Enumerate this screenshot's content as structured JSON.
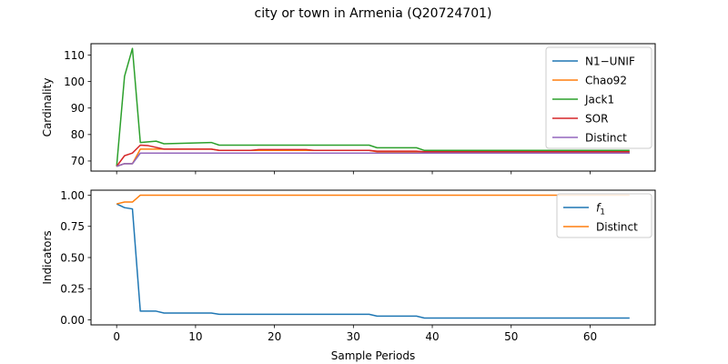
{
  "figure": {
    "title": "city or town in Armenia (Q20724701)"
  },
  "chart_data": [
    {
      "type": "line",
      "ylabel": "Cardinality",
      "xlabel": "",
      "xlim": [
        -3.25,
        68.25
      ],
      "ylim": [
        66.2,
        114.3
      ],
      "yticks": [
        70,
        80,
        90,
        100,
        110
      ],
      "xticks": [
        0,
        10,
        20,
        30,
        40,
        50,
        60
      ],
      "show_x_tick_labels": false,
      "legend_position": "upper right",
      "series": [
        {
          "name": "N1−UNIF",
          "color": "#1f77b4",
          "x": [
            0,
            1,
            2,
            3,
            5,
            6,
            12,
            13,
            32,
            33,
            38,
            39,
            65
          ],
          "y": [
            68,
            69,
            69,
            73,
            73,
            73,
            73,
            73,
            73,
            73,
            73,
            73,
            73
          ]
        },
        {
          "name": "Chao92",
          "color": "#ff7f0e",
          "x": [
            0,
            1,
            2,
            3,
            5,
            6,
            12,
            13,
            32,
            33,
            38,
            39,
            65
          ],
          "y": [
            68,
            69,
            69,
            74.5,
            74.5,
            74.5,
            74.5,
            74,
            74,
            73.5,
            73.5,
            73.5,
            73.5
          ]
        },
        {
          "name": "Jack1",
          "color": "#2ca02c",
          "x": [
            0,
            1,
            2,
            3,
            5,
            6,
            12,
            13,
            32,
            33,
            38,
            39,
            65
          ],
          "y": [
            68,
            102,
            112.5,
            77,
            77.5,
            76.5,
            77,
            76,
            76,
            75,
            75,
            74,
            74
          ]
        },
        {
          "name": "SOR",
          "color": "#d62728",
          "x": [
            0,
            1,
            2,
            3,
            4,
            6,
            12,
            13,
            17,
            18,
            24,
            25,
            32,
            33,
            38,
            39,
            65
          ],
          "y": [
            68,
            72,
            73,
            76,
            75.8,
            74.5,
            74.5,
            74,
            74,
            74.3,
            74.3,
            74,
            74,
            73.7,
            73.7,
            73.5,
            73.5
          ]
        },
        {
          "name": "Distinct",
          "color": "#9467bd",
          "x": [
            0,
            1,
            2,
            3,
            65
          ],
          "y": [
            68,
            69,
            69,
            73,
            73
          ]
        }
      ]
    },
    {
      "type": "line",
      "ylabel": "Indicators",
      "xlabel": "Sample Periods",
      "xlim": [
        -3.25,
        68.25
      ],
      "ylim": [
        -0.04,
        1.04
      ],
      "yticks": [
        0.0,
        0.25,
        0.5,
        0.75,
        1.0
      ],
      "ytick_labels": [
        "0.00",
        "0.25",
        "0.50",
        "0.75",
        "1.00"
      ],
      "xticks": [
        0,
        10,
        20,
        30,
        40,
        50,
        60
      ],
      "show_x_tick_labels": true,
      "legend_position": "upper right",
      "series": [
        {
          "name": "f1",
          "color": "#1f77b4",
          "x": [
            0,
            1,
            2,
            3,
            5,
            6,
            12,
            13,
            32,
            33,
            38,
            39,
            65
          ],
          "y": [
            0.93,
            0.9,
            0.89,
            0.07,
            0.07,
            0.055,
            0.055,
            0.045,
            0.045,
            0.03,
            0.03,
            0.015,
            0.015
          ]
        },
        {
          "name": "Distinct",
          "color": "#ff7f0e",
          "x": [
            0,
            1,
            2,
            3,
            65
          ],
          "y": [
            0.93,
            0.945,
            0.945,
            1.0,
            1.0
          ]
        }
      ]
    }
  ]
}
